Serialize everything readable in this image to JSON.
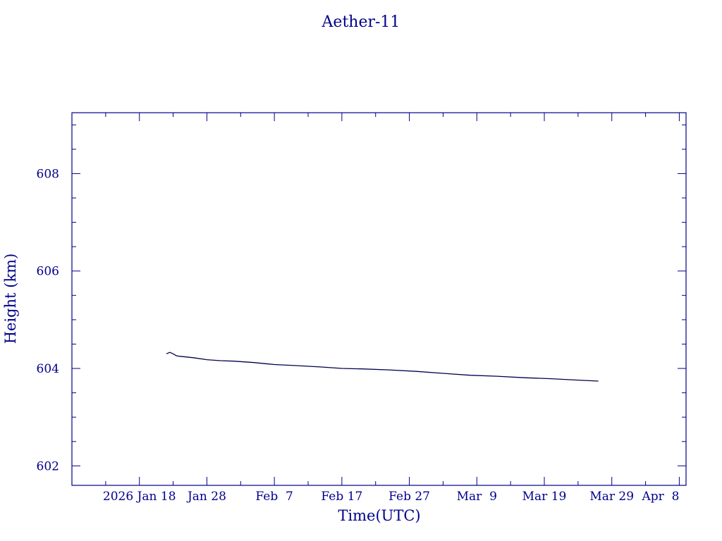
{
  "chart_data": {
    "type": "line",
    "title": "Aether-11",
    "xlabel": "Time(UTC)",
    "ylabel": "Height (km)",
    "x_tick_labels": [
      "2026 Jan 18",
      "Jan 28",
      "Feb  7",
      "Feb 17",
      "Feb 27",
      "Mar  9",
      "Mar 19",
      "Mar 29",
      "Apr  8"
    ],
    "x_tick_dates": [
      "2026-01-18",
      "2026-01-28",
      "2026-02-07",
      "2026-02-17",
      "2026-02-27",
      "2026-03-09",
      "2026-03-19",
      "2026-03-29",
      "2026-04-08"
    ],
    "xlim": [
      "2026-01-08",
      "2026-04-09"
    ],
    "ylim": [
      601.6,
      609.25
    ],
    "y_ticks": [
      602,
      604,
      606,
      608
    ],
    "y_minor_step": 0.5,
    "x_minor_step_days": 5,
    "grid": false,
    "colors": {
      "axes": "#00008b",
      "line": "#000050",
      "background": "#ffffff"
    },
    "series": [
      {
        "x": [
          "2026-01-22",
          "2026-01-22T12:00",
          "2026-01-23",
          "2026-01-23T12:00",
          "2026-01-24",
          "2026-01-26",
          "2026-01-28",
          "2026-01-30",
          "2026-02-01",
          "2026-02-04",
          "2026-02-07",
          "2026-02-10",
          "2026-02-14",
          "2026-02-17",
          "2026-02-20",
          "2026-02-24",
          "2026-02-28",
          "2026-03-04",
          "2026-03-08",
          "2026-03-12",
          "2026-03-16",
          "2026-03-20",
          "2026-03-24",
          "2026-03-27"
        ],
        "y": [
          604.3,
          604.33,
          604.3,
          604.26,
          604.25,
          604.22,
          604.18,
          604.16,
          604.15,
          604.12,
          604.08,
          604.06,
          604.03,
          604.0,
          603.99,
          603.97,
          603.94,
          603.9,
          603.86,
          603.84,
          603.81,
          603.79,
          603.76,
          603.74
        ]
      }
    ]
  }
}
